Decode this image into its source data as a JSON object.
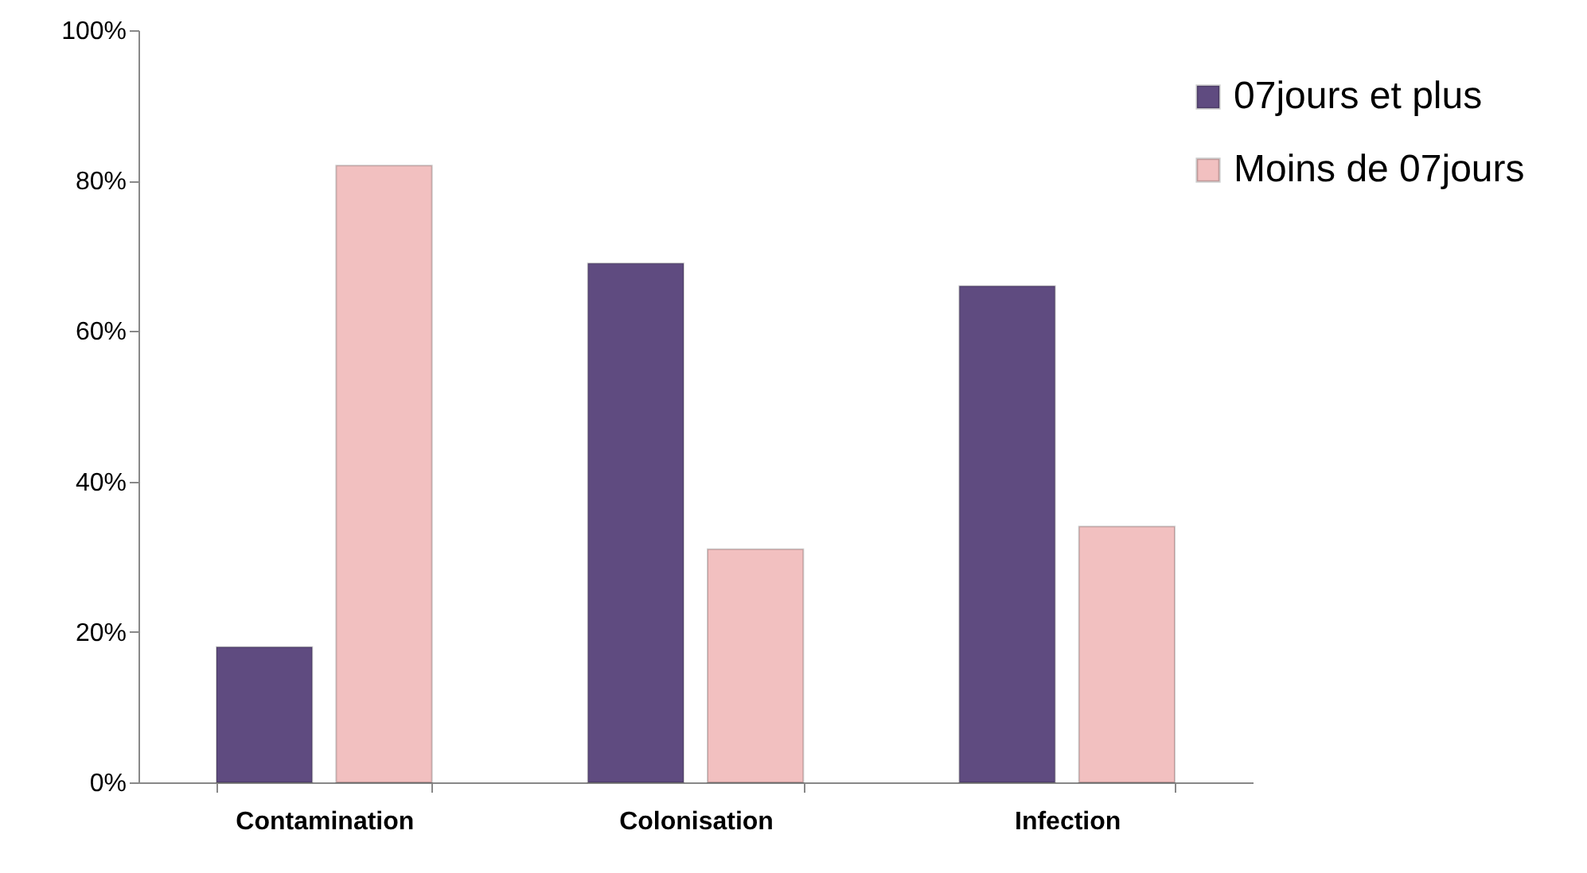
{
  "chart_data": {
    "type": "bar",
    "categories": [
      "Contamination",
      "Colonisation",
      "Infection"
    ],
    "series": [
      {
        "name": "07jours et plus",
        "color": "#5f4b80",
        "values": [
          18,
          69,
          66
        ]
      },
      {
        "name": "Moins de 07jours",
        "color": "#f2c0c0",
        "values": [
          82,
          31,
          34
        ]
      }
    ],
    "ylim": [
      0,
      100
    ],
    "yticks": [
      {
        "value": 0,
        "label": "0%"
      },
      {
        "value": 20,
        "label": "20%"
      },
      {
        "value": 40,
        "label": "40%"
      },
      {
        "value": 60,
        "label": "60%"
      },
      {
        "value": 80,
        "label": "80%"
      },
      {
        "value": 100,
        "label": "100%"
      }
    ],
    "grid": false,
    "legend": "top right"
  }
}
